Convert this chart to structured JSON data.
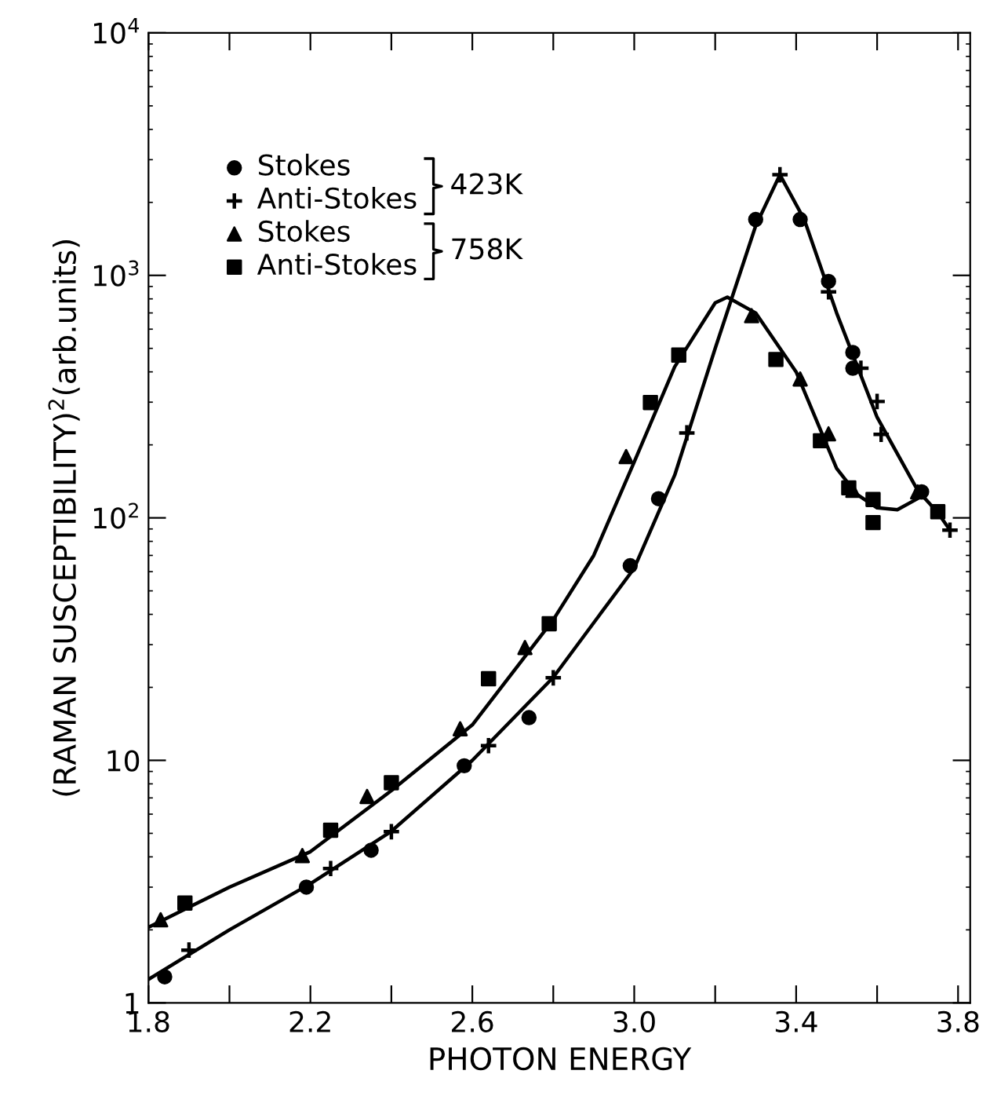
{
  "chart_data": {
    "type": "scatter",
    "xlabel": "PHOTON ENERGY",
    "ylabel": "(RAMAN SUSCEPTIBILITY)$^{2}$(arb.units)",
    "log": "y",
    "xlim": [
      1.8,
      3.83
    ],
    "ylim": [
      1,
      10000
    ],
    "xticks": [
      1.8,
      {
        "value": 2.0,
        "label": null
      },
      2.2,
      {
        "value": 2.4,
        "label": null
      },
      2.6,
      {
        "value": 2.8,
        "label": null
      },
      {
        "value": 3.0,
        "label": "3.0"
      },
      {
        "value": 3.2,
        "label": null
      },
      3.4,
      {
        "value": 3.6,
        "label": null
      },
      3.8
    ],
    "yticks": [
      1,
      10,
      {
        "value": 100,
        "label": "10$^{2}$"
      },
      {
        "value": 1000,
        "label": "10$^{3}$"
      },
      {
        "value": 10000,
        "label": "10$^{4}$"
      }
    ],
    "grid": false,
    "legend": "top left",
    "annotations": [
      "423K",
      "758K"
    ],
    "series": [
      {
        "name": "Stokes",
        "color": "#000000",
        "marker": "circle",
        "x": [
          1.84,
          2.19,
          2.35,
          2.58,
          2.74,
          2.99,
          3.06,
          3.3,
          3.41,
          3.48,
          3.54,
          3.54,
          3.71
        ],
        "values": [
          1.28,
          3.0,
          4.26,
          9.5,
          15.0,
          63.5,
          120,
          1700,
          1700,
          944,
          481,
          414,
          128
        ]
      },
      {
        "name": "Anti-Stokes",
        "color": "#000000",
        "marker": "cross",
        "x": [
          1.9,
          2.25,
          2.4,
          2.64,
          2.8,
          3.13,
          3.36,
          3.48,
          3.56,
          3.6,
          3.61,
          3.78
        ],
        "values": [
          1.65,
          3.58,
          5.08,
          11.5,
          21.9,
          224,
          2600,
          855,
          414,
          302,
          221,
          89
        ]
      },
      {
        "name": "Stokes",
        "color": "#000000",
        "marker": "triangle",
        "x": [
          1.83,
          2.18,
          2.34,
          2.57,
          2.73,
          2.98,
          3.29,
          3.41,
          3.48,
          3.54,
          3.7
        ],
        "values": [
          2.2,
          4.05,
          7.1,
          13.5,
          29.2,
          179,
          682,
          374,
          222,
          130,
          128
        ]
      },
      {
        "name": "Anti-Stokes",
        "color": "#000000",
        "marker": "square",
        "x": [
          1.89,
          2.25,
          2.4,
          2.64,
          2.79,
          3.04,
          3.11,
          3.35,
          3.46,
          3.53,
          3.59,
          3.59,
          3.75
        ],
        "values": [
          2.58,
          5.15,
          8.09,
          21.7,
          36.6,
          299,
          469,
          450,
          208,
          133,
          119,
          95.6,
          106
        ]
      },
      {
        "type": "line",
        "color": "#000000",
        "line_style": "solid",
        "x": [
          1.8,
          2.0,
          2.2,
          2.4,
          2.6,
          2.8,
          3.0,
          3.1,
          3.2,
          3.3,
          3.36,
          3.42,
          3.5,
          3.6,
          3.7,
          3.75,
          3.78
        ],
        "values": [
          1.25,
          2.0,
          3.1,
          5.1,
          10,
          22,
          62,
          150,
          500,
          1600,
          2600,
          1700,
          700,
          260,
          130,
          105,
          89
        ]
      },
      {
        "type": "line",
        "color": "#000000",
        "line_style": "solid",
        "x": [
          1.8,
          2.0,
          2.2,
          2.4,
          2.6,
          2.8,
          2.9,
          3.0,
          3.1,
          3.2,
          3.23,
          3.3,
          3.4,
          3.5,
          3.55,
          3.6,
          3.65,
          3.7,
          3.72
        ],
        "values": [
          2.05,
          3.0,
          4.2,
          7.5,
          14,
          38,
          70,
          170,
          420,
          770,
          813,
          700,
          400,
          160,
          125,
          110,
          108,
          120,
          128
        ]
      }
    ]
  }
}
